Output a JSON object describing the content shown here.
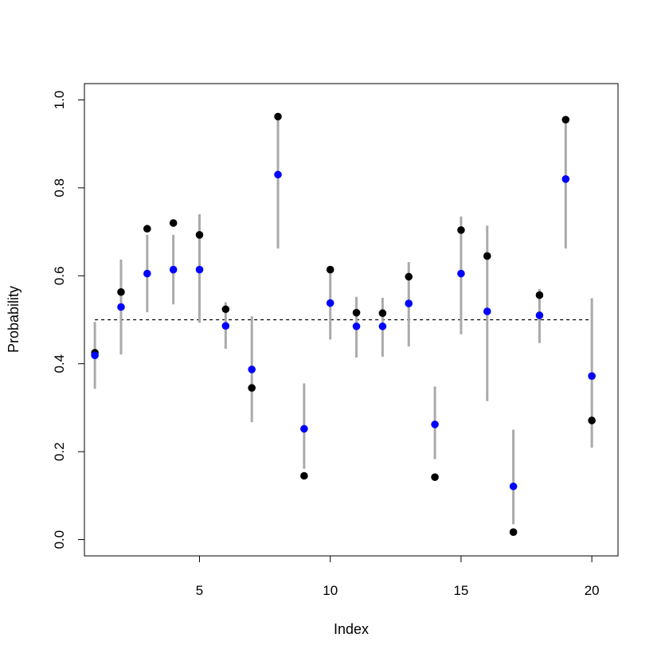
{
  "chart_data": {
    "type": "scatter",
    "title": "",
    "xlabel": "Index",
    "ylabel": "Probability",
    "xlim": [
      0.6,
      21.0
    ],
    "ylim": [
      -0.037,
      1.037
    ],
    "x_ticks": [
      5,
      10,
      15,
      20
    ],
    "y_ticks": [
      0.0,
      0.2,
      0.4,
      0.6,
      0.8,
      1.0
    ],
    "x_tick_labels": [
      "5",
      "10",
      "15",
      "20"
    ],
    "y_tick_labels": [
      "0.0",
      "0.2",
      "0.4",
      "0.6",
      "0.8",
      "1.0"
    ],
    "grid": false,
    "reference_line": {
      "y": 0.5,
      "x_from": 1,
      "x_to": 20,
      "style": "dashed",
      "color": "#000000"
    },
    "x": [
      1,
      2,
      3,
      4,
      5,
      6,
      7,
      8,
      9,
      10,
      11,
      12,
      13,
      14,
      15,
      16,
      17,
      18,
      19,
      20
    ],
    "intervals": {
      "color": "#aaaaaa",
      "lower": [
        0.343,
        0.421,
        0.517,
        0.535,
        0.493,
        0.434,
        0.267,
        0.662,
        0.161,
        0.455,
        0.414,
        0.416,
        0.439,
        0.183,
        0.467,
        0.315,
        0.035,
        0.447,
        0.662,
        0.209
      ],
      "upper": [
        0.495,
        0.637,
        0.693,
        0.693,
        0.74,
        0.54,
        0.508,
        0.96,
        0.355,
        0.616,
        0.552,
        0.55,
        0.631,
        0.348,
        0.735,
        0.714,
        0.25,
        0.57,
        0.956,
        0.549
      ]
    },
    "series": [
      {
        "color": "#000000",
        "values": [
          0.425,
          0.563,
          0.707,
          0.72,
          0.693,
          0.524,
          0.345,
          0.962,
          0.145,
          0.614,
          0.516,
          0.515,
          0.598,
          0.142,
          0.704,
          0.645,
          0.017,
          0.556,
          0.955,
          0.271
        ]
      },
      {
        "color": "#0000ff",
        "values": [
          0.419,
          0.529,
          0.605,
          0.614,
          0.614,
          0.486,
          0.387,
          0.83,
          0.252,
          0.538,
          0.485,
          0.485,
          0.537,
          0.262,
          0.605,
          0.519,
          0.121,
          0.51,
          0.82,
          0.372
        ]
      }
    ]
  }
}
